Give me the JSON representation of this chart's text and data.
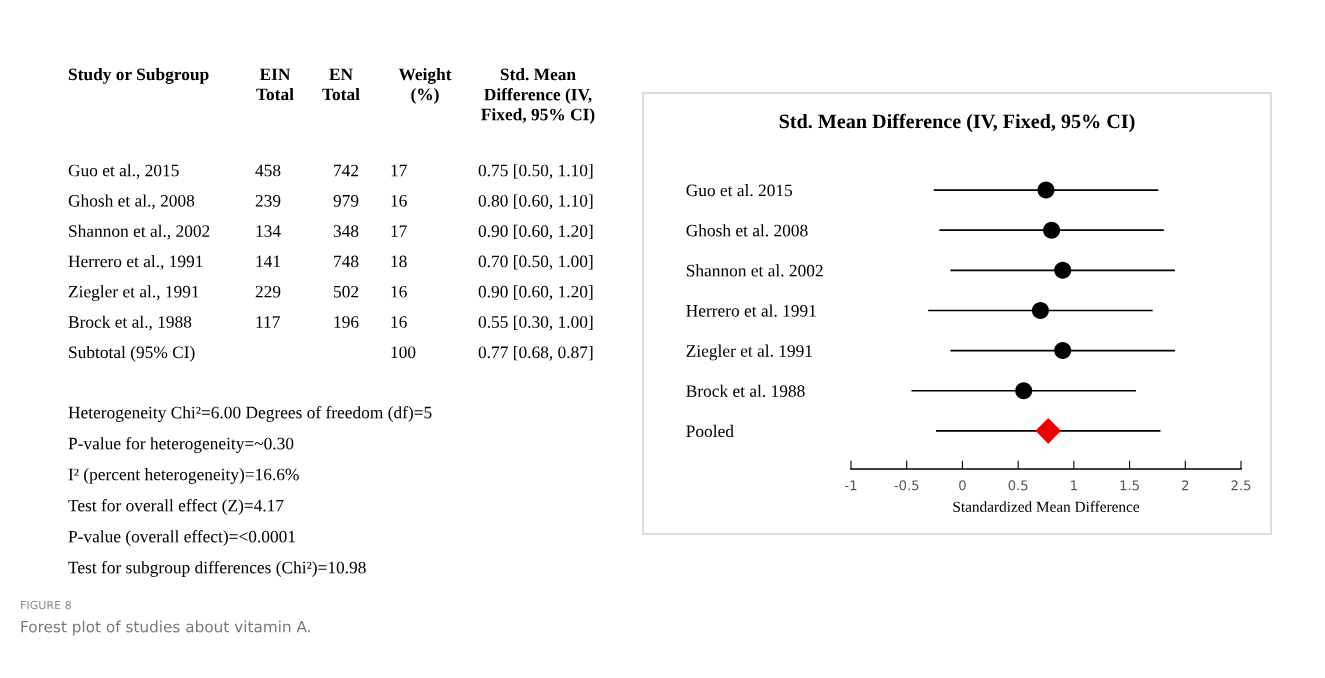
{
  "chart_data": [
    {
      "type": "other",
      "title": "FIGURE 8",
      "subtitle": "Forest plot of studies about vitamin A.",
      "categories": [
        "Study or Subgroup",
        "EIN\nTotal",
        "EN\nTotal",
        "Weight\n(%)",
        "Std. Mean\nDifference (IV,\nFixed, 95% CI)"
      ],
      "y_categories": [
        "Guo et al., 2015",
        "Ghosh et al., 2008",
        "Shannon et al., 2002",
        "Herrero et al., 1991",
        "Ziegler et al., 1991",
        "Brock et al., 1988",
        "Subtotal (95% CI)"
      ],
      "cell_labels": [
        [
          "458",
          "742",
          "17",
          "0.75 [0.50, 1.10]"
        ],
        [
          "239",
          "979",
          "16",
          "0.80 [0.60, 1.10]"
        ],
        [
          "134",
          "348",
          "17",
          "0.90 [0.60, 1.20]"
        ],
        [
          "141",
          "748",
          "18",
          "0.70 [0.50, 1.00]"
        ],
        [
          "229",
          "502",
          "16",
          "0.90 [0.60, 1.20]"
        ],
        [
          "117",
          "196",
          "16",
          "0.55 [0.30, 1.00]"
        ],
        [
          null,
          null,
          "100",
          "0.77 [0.68, 0.87]"
        ]
      ],
      "annotations": [
        "Heterogeneity Chi²=6.00 Degrees of freedom (df)=5",
        "P-value for heterogeneity=~0.30",
        "I² (percent heterogeneity)=16.6%",
        "Test for overall effect (Z)=4.17",
        "P-value (overall effect)=<0.0001",
        "Test for subgroup differences (Chi²)=10.98"
      ]
    },
    {
      "type": "scatter",
      "title": "Std. Mean Difference (IV, Fixed, 95% CI)",
      "xlabel": "Standardized Mean Difference",
      "orientation": "horizontal",
      "categories": [
        "Guo et al. 2015",
        "Ghosh et al. 2008",
        "Shannon et al. 2002",
        "Herrero et al. 1991",
        "Ziegler et al. 1991",
        "Brock et al. 1988",
        "Pooled"
      ],
      "series": [
        {
          "color": "#000000",
          "marker": "circle",
          "values": [
            0.75,
            0.8,
            0.9,
            0.7,
            0.9,
            0.55,
            null
          ],
          "errors": [
            1.0,
            1.0,
            1.0,
            1.0,
            1.0,
            1.0,
            null
          ]
        },
        {
          "color": "#ee0000",
          "marker": "diamond",
          "values": [
            null,
            null,
            null,
            null,
            null,
            null,
            0.77
          ],
          "errors": [
            null,
            null,
            null,
            null,
            null,
            null,
            1.0
          ]
        }
      ],
      "xlim": [
        -1,
        2.5
      ],
      "xticks": [
        -1,
        -0.5,
        0,
        0.5,
        1,
        1.5,
        2,
        2.5
      ],
      "grid": false,
      "legend": false
    }
  ]
}
